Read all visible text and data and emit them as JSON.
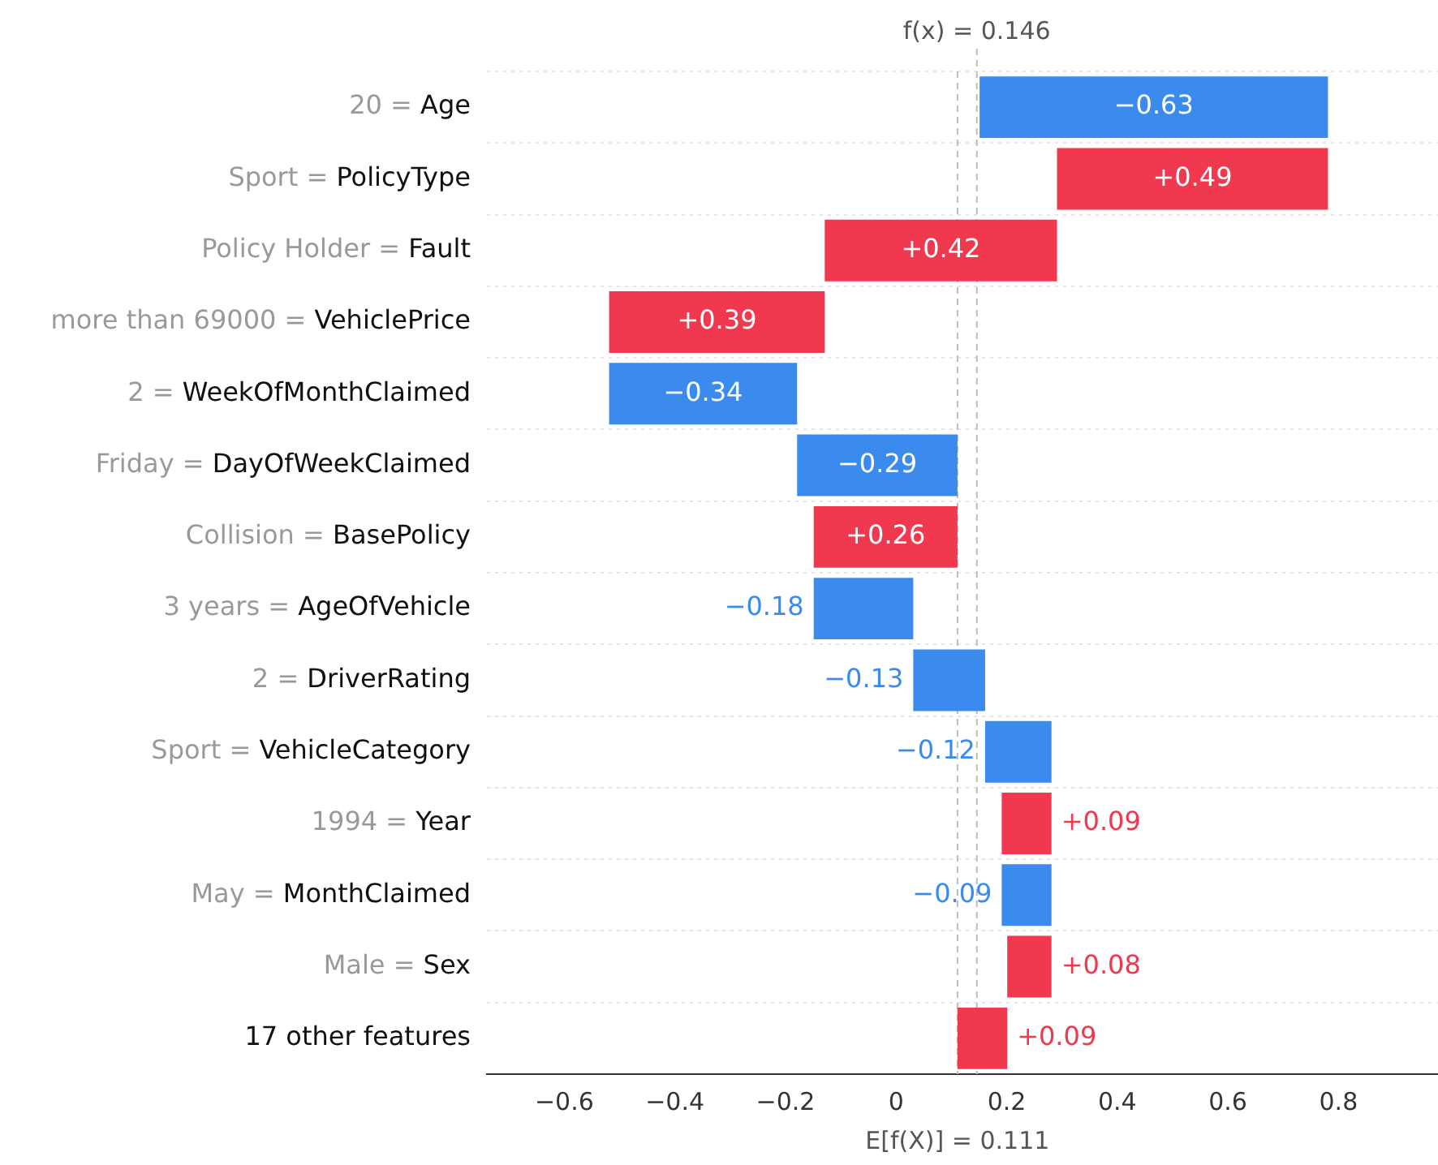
{
  "chart_data": {
    "type": "bar",
    "orientation": "horizontal",
    "categories": [
      "20 = Age",
      "Sport = PolicyType",
      "Policy Holder = Fault",
      "more than 69000 = VehiclePrice",
      "2 = WeekOfMonthClaimed",
      "Friday = DayOfWeekClaimed",
      "Collision = BasePolicy",
      "3 years = AgeOfVehicle",
      "2 = DriverRating",
      "Sport = VehicleCategory",
      "1994 = Year",
      "May = MonthClaimed",
      "Male = Sex",
      "17 other features"
    ],
    "values": [
      -0.63,
      0.49,
      0.42,
      0.39,
      -0.34,
      -0.29,
      0.26,
      -0.18,
      -0.13,
      -0.12,
      0.09,
      -0.09,
      0.08,
      0.09
    ],
    "base": [
      0.781,
      0.291,
      -0.129,
      -0.519,
      -0.179,
      0.111,
      -0.149,
      0.031,
      0.161,
      0.281,
      0.191,
      0.281,
      0.201,
      0.111
    ],
    "colors": [
      "#3b8bef",
      "#f0384f",
      "#f0384f",
      "#f0384f",
      "#3b8bef",
      "#3b8bef",
      "#f0384f",
      "#3b8bef",
      "#3b8bef",
      "#3b8bef",
      "#f0384f",
      "#3b8bef",
      "#f0384f",
      "#f0384f"
    ],
    "value_labels": [
      "−0.63",
      "+0.49",
      "+0.42",
      "+0.39",
      "−0.34",
      "−0.29",
      "+0.26",
      "−0.18",
      "−0.13",
      "−0.12",
      "+0.09",
      "−0.09",
      "+0.08",
      "+0.09"
    ],
    "xlim": [
      -0.74,
      0.98
    ],
    "xticks": [
      {
        "value": -0.6,
        "label": "−0.6"
      },
      {
        "value": -0.4,
        "label": "−0.4"
      },
      {
        "value": -0.2,
        "label": "−0.2"
      },
      0.0,
      0.2,
      0.4,
      0.6,
      0.8
    ],
    "ref_lines": [
      {
        "axis": "x",
        "value": 0.111,
        "label": "E[f(X)] = 0.111",
        "color": "#bbbbbb",
        "line_style": "dashed"
      },
      {
        "axis": "x",
        "value": 0.146,
        "label": "f(x) = 0.146",
        "color": "#bbbbbb",
        "line_style": "dashed"
      }
    ],
    "grid": "y",
    "legend": false
  }
}
